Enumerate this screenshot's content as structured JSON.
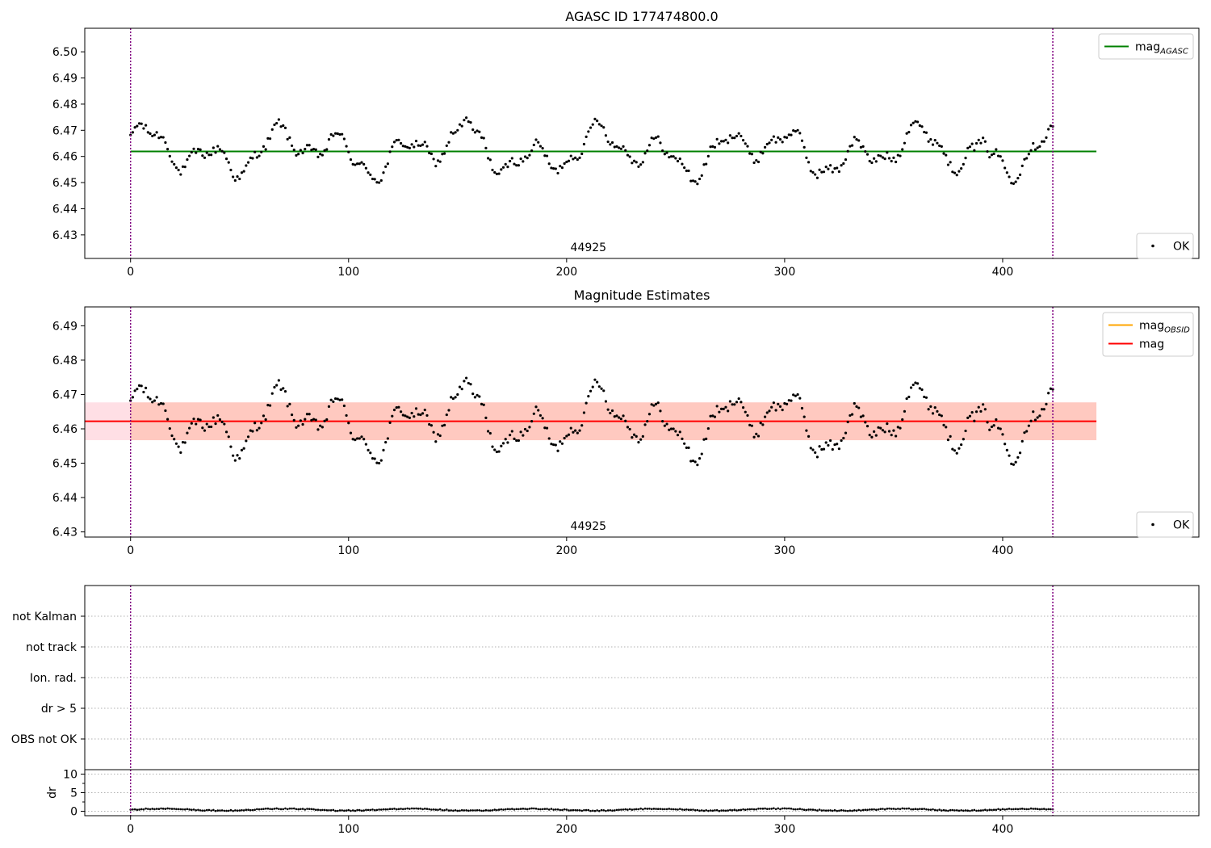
{
  "chart_data": [
    {
      "type": "scatter",
      "title": "AGASC ID 177474800.0",
      "xlabel": "",
      "ylabel": "",
      "xlim": [
        -21,
        490
      ],
      "ylim": [
        6.421,
        6.509
      ],
      "xticks": [
        "0",
        "100",
        "200",
        "300",
        "400"
      ],
      "yticks": [
        "6.43",
        "6.44",
        "6.45",
        "6.46",
        "6.47",
        "6.48",
        "6.49",
        "6.50"
      ],
      "annotation": "44925",
      "vlines": [
        0,
        423
      ],
      "grid": false,
      "legend_top": {
        "placement": "top-right",
        "entries": [
          {
            "label": "mag",
            "subscript": "AGASC",
            "color": "#008000"
          }
        ]
      },
      "legend_bottom": {
        "placement": "bottom-right",
        "entries": [
          {
            "label": "OK",
            "color": "#000000"
          }
        ]
      },
      "hlines": [
        {
          "name": "mag_AGASC",
          "y": 6.4619,
          "x_range": [
            0,
            443
          ],
          "color": "#008000"
        }
      ],
      "series": [
        {
          "name": "OK",
          "x_range": [
            0,
            423
          ],
          "approx_count": 424,
          "mean": 6.4619,
          "min": 6.4505,
          "max": 6.479
        }
      ]
    },
    {
      "type": "scatter",
      "title": "Magnitude Estimates",
      "xlabel": "",
      "ylabel": "",
      "xlim": [
        -21,
        490
      ],
      "ylim": [
        6.4285,
        6.4955
      ],
      "xticks": [
        "0",
        "100",
        "200",
        "300",
        "400"
      ],
      "yticks": [
        "6.43",
        "6.44",
        "6.45",
        "6.46",
        "6.47",
        "6.48",
        "6.49"
      ],
      "annotation": "44925",
      "vlines": [
        0,
        423
      ],
      "grid": false,
      "legend_top": {
        "placement": "top-right",
        "entries": [
          {
            "label": "mag",
            "subscript": "OBSID",
            "color": "#ffa500"
          },
          {
            "label": "mag",
            "subscript": "",
            "color": "#ff0000"
          }
        ]
      },
      "legend_bottom": {
        "placement": "bottom-right",
        "entries": [
          {
            "label": "OK",
            "color": "#000000"
          }
        ]
      },
      "hlines": [
        {
          "name": "mag",
          "y": 6.4622,
          "x_range": [
            -21,
            443
          ],
          "color": "#ff0000"
        }
      ],
      "bands": [
        {
          "y": [
            6.4567,
            6.4677
          ],
          "x_range": [
            -21,
            443
          ],
          "color": "#ffc0cb"
        },
        {
          "y": [
            6.4567,
            6.4677
          ],
          "x_range": [
            -21,
            0
          ],
          "color": "#ffc0cb"
        },
        {
          "y": [
            6.4567,
            6.4677
          ],
          "x_range": [
            0,
            443
          ],
          "color": "#ffa07a"
        }
      ],
      "series": [
        {
          "name": "OK",
          "x_range": [
            0,
            423
          ],
          "approx_count": 424,
          "mean": 6.4619,
          "min": 6.4505,
          "max": 6.479
        }
      ]
    },
    {
      "type": "scatter",
      "title": "",
      "xlim": [
        -21,
        490
      ],
      "categories": [
        "OBS not OK",
        "dr > 5",
        "Ion. rad.",
        "not track",
        "not Kalman"
      ],
      "vlines": [
        0,
        423
      ],
      "grid": true,
      "series": []
    },
    {
      "type": "scatter",
      "title": "",
      "xlabel": "",
      "ylabel": "dr",
      "xlim": [
        -21,
        490
      ],
      "ylim": [
        -1.2,
        11.2
      ],
      "xticks": [
        "0",
        "100",
        "200",
        "300",
        "400"
      ],
      "yticks": [
        "0",
        "5",
        "10"
      ],
      "vlines": [
        0,
        423
      ],
      "grid": true,
      "series": [
        {
          "name": "dr",
          "x_range": [
            0,
            423
          ],
          "approx_count": 424,
          "min": 0.0,
          "max": 0.8
        }
      ]
    }
  ]
}
